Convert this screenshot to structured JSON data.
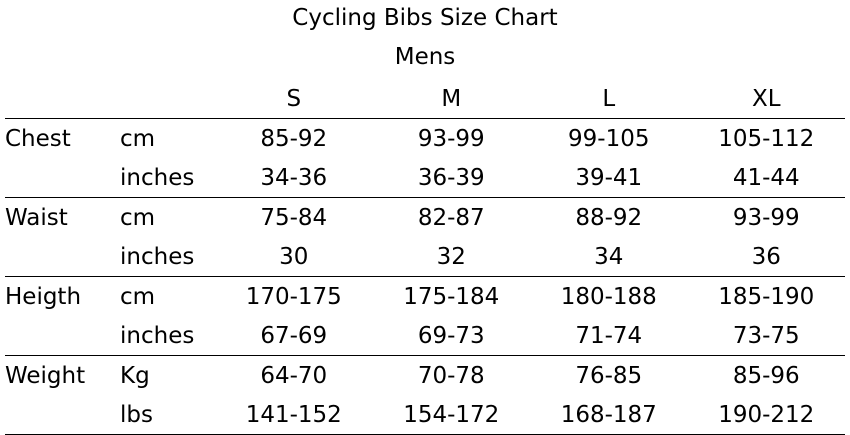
{
  "title": "Cycling Bibs Size Chart",
  "subtitle": "Mens",
  "sizes": [
    "S",
    "M",
    "L",
    "XL"
  ],
  "groups": [
    {
      "measure": "Chest",
      "rows": [
        {
          "unit": "cm",
          "values": [
            "85-92",
            "93-99",
            "99-105",
            "105-112"
          ]
        },
        {
          "unit": "inches",
          "values": [
            "34-36",
            "36-39",
            "39-41",
            "41-44"
          ]
        }
      ]
    },
    {
      "measure": "Waist",
      "rows": [
        {
          "unit": "cm",
          "values": [
            "75-84",
            "82-87",
            "88-92",
            "93-99"
          ]
        },
        {
          "unit": "inches",
          "values": [
            "30",
            "32",
            "34",
            "36"
          ]
        }
      ]
    },
    {
      "measure": "Heigth",
      "rows": [
        {
          "unit": "cm",
          "values": [
            "170-175",
            "175-184",
            "180-188",
            "185-190"
          ]
        },
        {
          "unit": "inches",
          "values": [
            "67-69",
            "69-73",
            "71-74",
            "73-75"
          ]
        }
      ]
    },
    {
      "measure": "Weight",
      "rows": [
        {
          "unit": "Kg",
          "values": [
            "64-70",
            "70-78",
            "76-85",
            "85-96"
          ]
        },
        {
          "unit": "lbs",
          "values": [
            "141-152",
            "154-172",
            "168-187",
            "190-212"
          ]
        }
      ]
    }
  ]
}
